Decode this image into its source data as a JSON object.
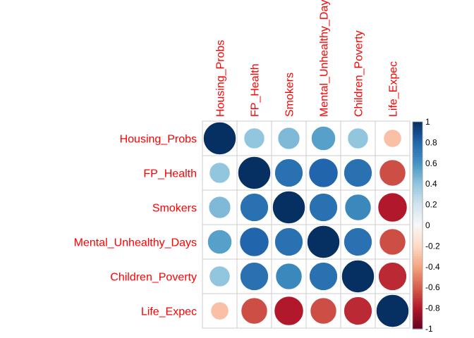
{
  "chart_data": {
    "type": "heatmap",
    "variables": [
      "Housing_Probs",
      "FP_Health",
      "Smokers",
      "Mental_Unhealthy_Days",
      "Children_Poverty",
      "Life_Expec"
    ],
    "matrix": [
      [
        1.0,
        0.4,
        0.45,
        0.55,
        0.4,
        -0.3
      ],
      [
        0.4,
        1.0,
        0.75,
        0.8,
        0.75,
        -0.65
      ],
      [
        0.45,
        0.75,
        1.0,
        0.75,
        0.65,
        -0.8
      ],
      [
        0.55,
        0.8,
        0.75,
        1.0,
        0.75,
        -0.65
      ],
      [
        0.4,
        0.75,
        0.65,
        0.75,
        1.0,
        -0.75
      ],
      [
        -0.3,
        -0.65,
        -0.8,
        -0.65,
        -0.75,
        1.0
      ]
    ],
    "colorbar": {
      "range": [
        -1,
        1
      ],
      "ticks": [
        "-1",
        "-0.8",
        "-0.6",
        "-0.4",
        "-0.2",
        "0",
        "0.2",
        "0.4",
        "0.6",
        "0.8",
        "1"
      ]
    },
    "label_color": "#ff0000",
    "grid_color": "#cccccc"
  }
}
